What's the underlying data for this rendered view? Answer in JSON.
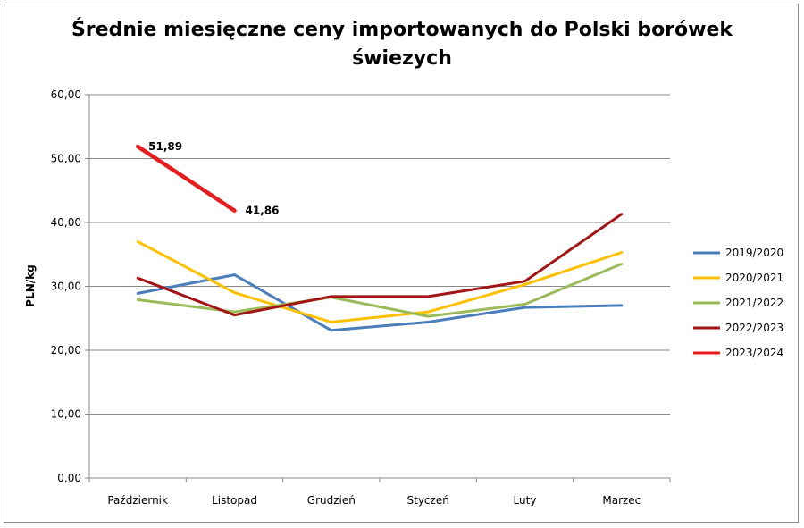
{
  "chart_data": {
    "type": "line",
    "title": "Średnie miesięczne ceny importowanych do Polski borówek\nświezych",
    "ylabel": "PLN/kg",
    "xlabel": "",
    "categories": [
      "Październik",
      "Listopad",
      "Grudzień",
      "Styczeń",
      "Luty",
      "Marzec"
    ],
    "ylim": [
      0,
      60
    ],
    "yticks": [
      "0,00",
      "10,00",
      "20,00",
      "30,00",
      "40,00",
      "50,00",
      "60,00"
    ],
    "grid": true,
    "legend_position": "right",
    "series": [
      {
        "name": "2019/2020",
        "color": "#4a7ebb",
        "values": [
          28.9,
          31.8,
          23.1,
          24.4,
          26.7,
          27.0
        ]
      },
      {
        "name": "2020/2021",
        "color": "#ffc000",
        "values": [
          37.0,
          29.0,
          24.4,
          26.0,
          30.3,
          35.3
        ]
      },
      {
        "name": "2021/2022",
        "color": "#9bbb59",
        "values": [
          27.9,
          26.0,
          28.3,
          25.3,
          27.2,
          33.5
        ]
      },
      {
        "name": "2022/2023",
        "color": "#a31515",
        "values": [
          31.3,
          25.5,
          28.4,
          28.4,
          30.8,
          41.3
        ]
      },
      {
        "name": "2023/2024",
        "color": "#e81c1c",
        "values": [
          51.89,
          41.86,
          null,
          null,
          null,
          null
        ],
        "data_labels": [
          "51,89",
          "41,86"
        ],
        "bold": true
      }
    ]
  }
}
